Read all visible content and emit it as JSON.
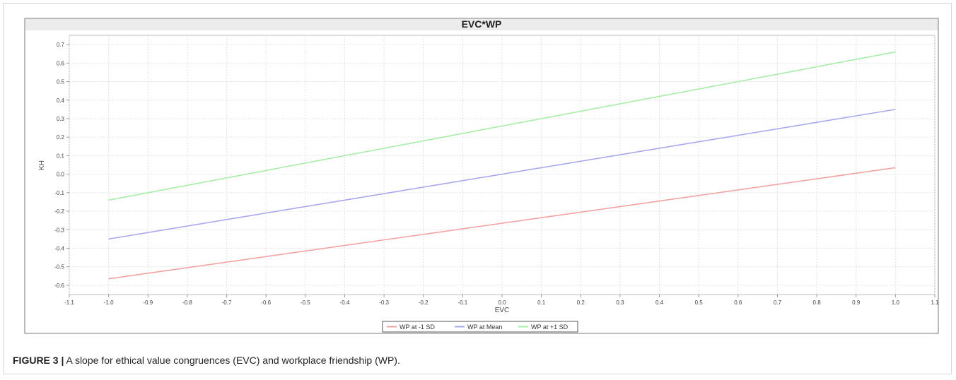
{
  "chart_data": {
    "type": "line",
    "title": "EVC*WP",
    "xlabel": "EVC",
    "ylabel": "KH",
    "xlim": [
      -1.1,
      1.1
    ],
    "ylim": [
      -0.65,
      0.75
    ],
    "x_ticks": [
      -1.1,
      -1.0,
      -0.9,
      -0.8,
      -0.7,
      -0.6,
      -0.5,
      -0.4,
      -0.3,
      -0.2,
      -0.1,
      0.0,
      0.1,
      0.2,
      0.3,
      0.4,
      0.5,
      0.6,
      0.7,
      0.8,
      0.9,
      1.0,
      1.1
    ],
    "y_ticks": [
      -0.6,
      -0.5,
      -0.4,
      -0.3,
      -0.2,
      -0.1,
      0.0,
      0.1,
      0.2,
      0.3,
      0.4,
      0.5,
      0.6,
      0.7
    ],
    "x_tick_labels": [
      "-1.1",
      "-1.0",
      "-0.9",
      "-0.8",
      "-0.7",
      "-0.6",
      "-0.5",
      "-0.4",
      "-0.3",
      "-0.2",
      "-0.1",
      "0.0",
      "0.1",
      "0.2",
      "0.3",
      "0.4",
      "0.5",
      "0.6",
      "0.7",
      "0.8",
      "0.9",
      "1.0",
      "1.1"
    ],
    "y_tick_labels": [
      "-0.6",
      "-0.5",
      "-0.4",
      "-0.3",
      "-0.2",
      "-0.1",
      "0.0",
      "0.1",
      "0.2",
      "0.3",
      "0.4",
      "0.5",
      "0.6",
      "0.7"
    ],
    "grid": true,
    "legend_position": "bottom-center",
    "series": [
      {
        "name": "WP at -1 SD",
        "color": "#f4a3a3",
        "x": [
          -1.0,
          1.0
        ],
        "y": [
          -0.565,
          0.035
        ]
      },
      {
        "name": "WP at Mean",
        "color": "#a8a8f0",
        "x": [
          -1.0,
          1.0
        ],
        "y": [
          -0.35,
          0.35
        ]
      },
      {
        "name": "WP at +1 SD",
        "color": "#a6eea6",
        "x": [
          -1.0,
          1.0
        ],
        "y": [
          -0.14,
          0.66
        ]
      }
    ]
  },
  "caption": {
    "label": "FIGURE 3 |",
    "text": " A slope for ethical value congruences (EVC) and workplace friendship (WP)."
  }
}
